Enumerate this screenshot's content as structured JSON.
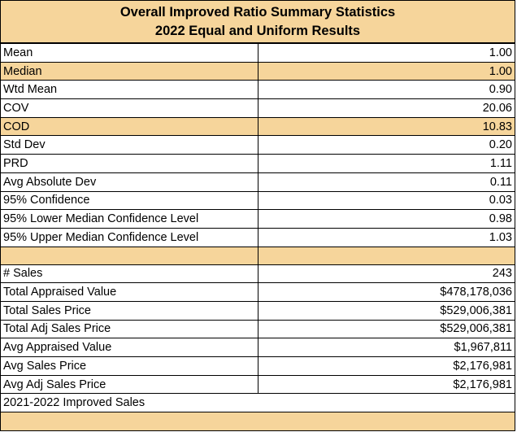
{
  "header": {
    "title_line1": "Overall Improved Ratio Summary Statistics",
    "title_line2": "2022 Equal and Uniform Results"
  },
  "highlight_color": "#f6d59b",
  "ratio_stats": [
    {
      "label": "Mean",
      "value": "1.00",
      "highlight": false
    },
    {
      "label": "Median",
      "value": "1.00",
      "highlight": true
    },
    {
      "label": "Wtd Mean",
      "value": "0.90",
      "highlight": false
    },
    {
      "label": "COV",
      "value": "20.06",
      "highlight": false
    },
    {
      "label": "COD",
      "value": "10.83",
      "highlight": true
    },
    {
      "label": "Std Dev",
      "value": "0.20",
      "highlight": false
    },
    {
      "label": "PRD",
      "value": "1.11",
      "highlight": false
    },
    {
      "label": "Avg Absolute Dev",
      "value": "0.11",
      "highlight": false
    },
    {
      "label": "95% Confidence",
      "value": "0.03",
      "highlight": false
    },
    {
      "label": "95% Lower Median Confidence Level",
      "value": "0.98",
      "highlight": false
    },
    {
      "label": "95% Upper Median Confidence Level",
      "value": "1.03",
      "highlight": false
    }
  ],
  "sales_stats": [
    {
      "label": "# Sales",
      "value": "243"
    },
    {
      "label": "Total Appraised Value",
      "value": "$478,178,036"
    },
    {
      "label": "Total Sales Price",
      "value": "$529,006,381"
    },
    {
      "label": "Total Adj Sales Price",
      "value": "$529,006,381"
    },
    {
      "label": "Avg Appraised Value",
      "value": "$1,967,811"
    },
    {
      "label": "Avg Sales Price",
      "value": "$2,176,981"
    },
    {
      "label": "Avg Adj Sales Price",
      "value": "$2,176,981"
    }
  ],
  "note": "2021-2022 Improved Sales"
}
